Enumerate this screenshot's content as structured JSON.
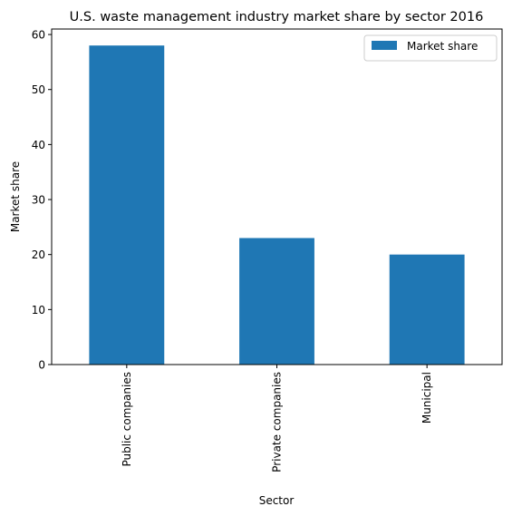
{
  "chart_data": {
    "type": "bar",
    "title": "U.S. waste management industry market share by sector 2016",
    "xlabel": "Sector",
    "ylabel": "Market share",
    "categories": [
      "Public companies",
      "Private companies",
      "Municipal"
    ],
    "series": [
      {
        "name": "Market share",
        "values": [
          58,
          23,
          20
        ]
      }
    ],
    "ylim": [
      0,
      61
    ],
    "yticks": [
      0,
      10,
      20,
      30,
      40,
      50,
      60
    ],
    "grid": false,
    "legend_position": "top-right",
    "colors": {
      "bar": "#1f77b4",
      "axis": "#000000",
      "legend_border": "#cccccc"
    }
  }
}
